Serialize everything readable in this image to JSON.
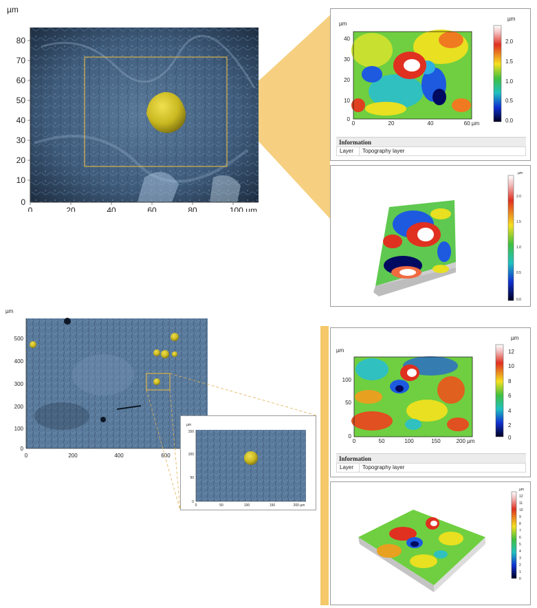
{
  "top": {
    "sem": {
      "unit": "µm",
      "y_ticks": [
        "80",
        "70",
        "60",
        "50",
        "40",
        "30",
        "20",
        "10",
        "0"
      ],
      "x_ticks": [
        "0",
        "20",
        "40",
        "60",
        "80",
        "100 µm"
      ]
    },
    "map2d": {
      "y_unit": "µm",
      "y_ticks": [
        "40",
        "30",
        "20",
        "10",
        "0"
      ],
      "x_ticks": [
        "0",
        "20",
        "40",
        "60 µm"
      ],
      "scale_unit": "µm",
      "scale_ticks": [
        "2.0",
        "1.5",
        "1.0",
        "0.5",
        "0.0"
      ]
    },
    "info": {
      "title": "Information",
      "key": "Layer",
      "value": "Topography layer"
    },
    "map3d": {
      "scale_unit": "µm",
      "scale_ticks": [
        "2.0",
        "1.5",
        "1.0",
        "0.5",
        "0.0"
      ]
    }
  },
  "bottom": {
    "sem": {
      "unit": "µm",
      "y_ticks": [
        "500",
        "400",
        "300",
        "200",
        "100",
        "0"
      ],
      "x_ticks": [
        "0",
        "200",
        "400",
        "600"
      ]
    },
    "inset": {
      "unit": "µm",
      "y_ticks": [
        "150",
        "100",
        "50",
        "0"
      ],
      "x_ticks": [
        "0",
        "50",
        "100",
        "150",
        "200 µm"
      ]
    },
    "map2d": {
      "y_unit": "µm",
      "y_ticks": [
        "100",
        "50",
        "0"
      ],
      "x_ticks": [
        "0",
        "50",
        "100",
        "150",
        "200 µm"
      ],
      "scale_unit": "µm",
      "scale_ticks": [
        "12",
        "10",
        "8",
        "6",
        "4",
        "2",
        "0"
      ]
    },
    "info": {
      "title": "Information",
      "key": "Layer",
      "value": "Topography layer"
    },
    "map3d": {
      "scale_unit": "µm",
      "scale_ticks": [
        "12",
        "11",
        "10",
        "9",
        "8",
        "7",
        "6",
        "5",
        "4",
        "3",
        "2",
        "1",
        "0"
      ]
    }
  },
  "colors": {
    "sem_blue": "#3d5a78",
    "particle_yellow": "#c9b820",
    "highlight_orange": "#f5c86a",
    "box_gold": "#d8b24a"
  }
}
